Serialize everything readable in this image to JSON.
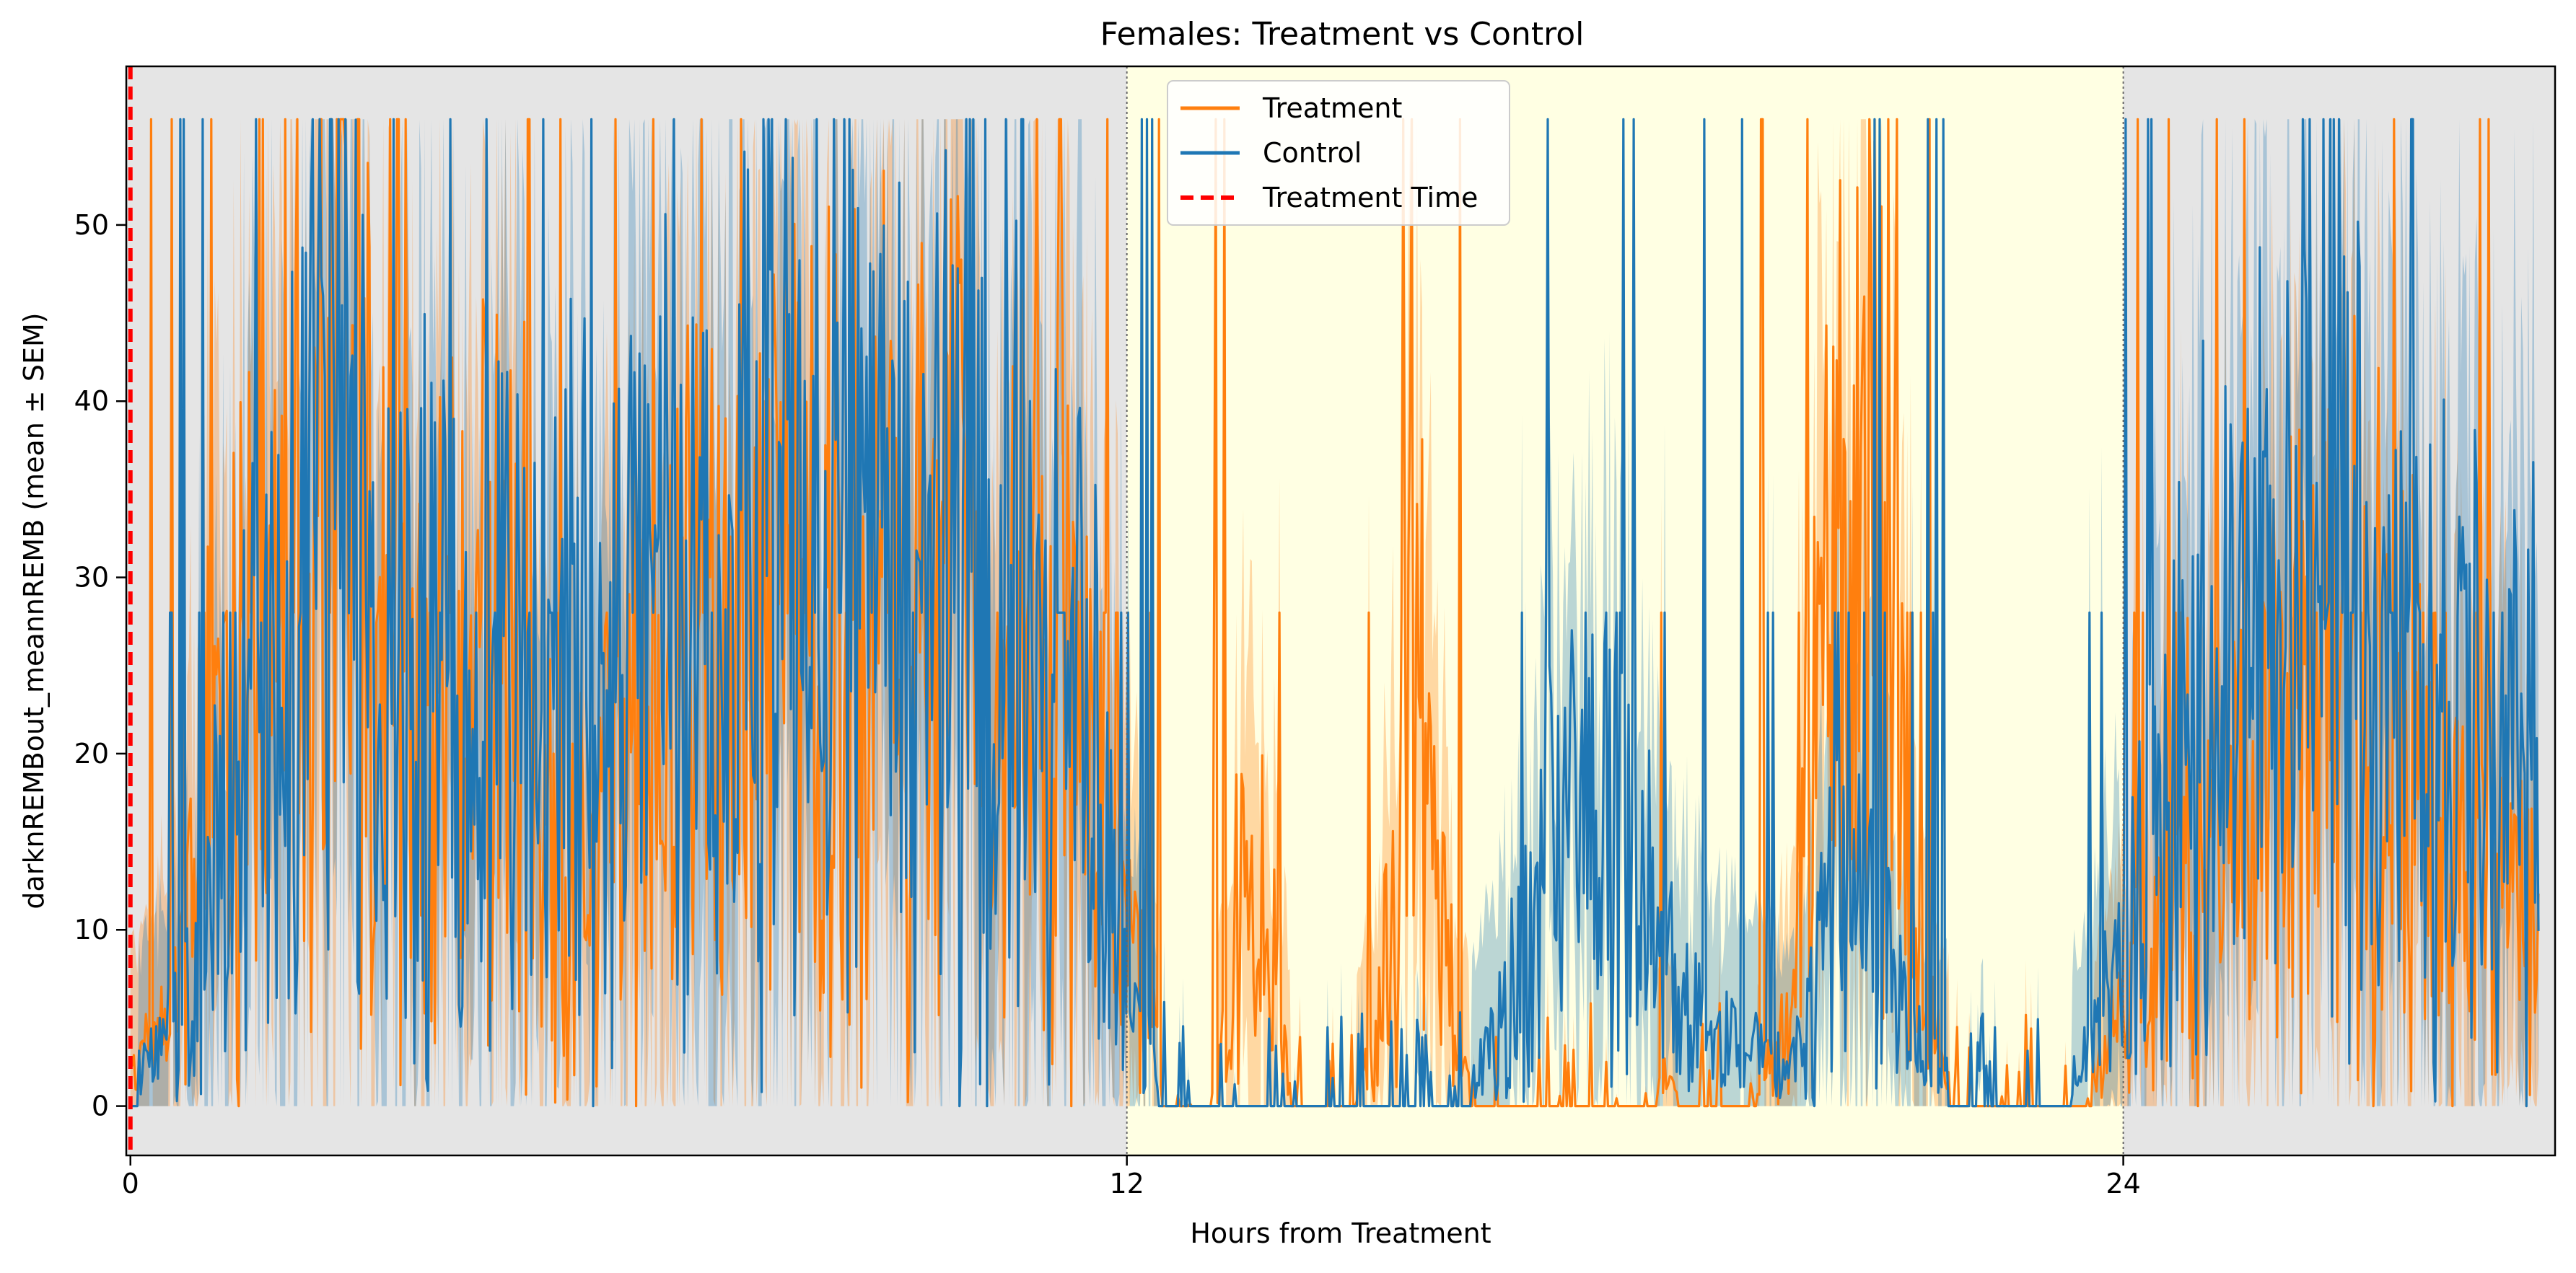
{
  "chart_data": {
    "type": "line",
    "title": "Females: Treatment vs Control",
    "xlabel": "Hours from Treatment",
    "ylabel": "darknREMBout_meannREMB (mean ± SEM)",
    "xlim": [
      -0.05,
      29.2
    ],
    "ylim": [
      -2.8,
      59
    ],
    "xticks": [
      0,
      12,
      24
    ],
    "yticks": [
      0,
      10,
      20,
      30,
      40,
      50
    ],
    "grid": false,
    "legend_position": "top-center",
    "legend": [
      "Treatment",
      "Control",
      "Treatment Time"
    ],
    "shading": [
      {
        "phase": "dark",
        "x_start": -0.05,
        "x_end": 12,
        "color": "#e5e5e5"
      },
      {
        "phase": "light",
        "x_start": 12,
        "x_end": 24,
        "color": "#ffffe3"
      },
      {
        "phase": "dark",
        "x_start": 24,
        "x_end": 29.2,
        "color": "#e5e5e5"
      }
    ],
    "phase_boundaries": [
      12,
      24
    ],
    "treatment_time": 0,
    "sem_ceiling": 56,
    "series": [
      {
        "name": "Treatment",
        "color": "#ff7f0e",
        "x": [
          0.0,
          0.5,
          1.0,
          1.5,
          2.0,
          2.5,
          3.0,
          3.5,
          4.0,
          4.5,
          5.0,
          5.5,
          6.0,
          6.5,
          7.0,
          7.5,
          8.0,
          8.5,
          9.0,
          9.5,
          10.0,
          10.5,
          11.0,
          11.5,
          12.0,
          12.5,
          13.0,
          13.5,
          14.0,
          14.5,
          15.0,
          15.5,
          16.0,
          16.5,
          17.0,
          17.5,
          18.0,
          18.5,
          19.0,
          19.5,
          20.0,
          20.5,
          21.0,
          21.5,
          22.0,
          22.5,
          23.0,
          23.5,
          24.0,
          24.5,
          25.0,
          25.5,
          26.0,
          26.5,
          27.0,
          27.5,
          28.0,
          28.5,
          29.0
        ],
        "y": [
          2,
          5,
          18,
          22,
          28,
          38,
          25,
          18,
          22,
          30,
          14,
          12,
          20,
          25,
          22,
          28,
          30,
          25,
          28,
          26,
          30,
          22,
          25,
          20,
          10,
          0,
          1,
          15,
          1,
          0,
          3,
          24,
          2,
          0,
          1,
          0,
          0,
          2,
          0,
          1,
          4,
          30,
          38,
          8,
          0,
          1,
          0,
          0,
          5,
          12,
          15,
          18,
          20,
          25,
          22,
          18,
          15,
          12,
          10
        ]
      },
      {
        "name": "Control",
        "color": "#1f77b4",
        "x": [
          0.0,
          0.5,
          1.0,
          1.5,
          2.0,
          2.5,
          3.0,
          3.5,
          4.0,
          4.5,
          5.0,
          5.5,
          6.0,
          6.5,
          7.0,
          7.5,
          8.0,
          8.5,
          9.0,
          9.5,
          10.0,
          10.5,
          11.0,
          11.5,
          12.0,
          12.5,
          13.0,
          13.5,
          14.0,
          14.5,
          15.0,
          15.5,
          16.0,
          16.5,
          17.0,
          17.5,
          18.0,
          18.5,
          19.0,
          19.5,
          20.0,
          20.5,
          21.0,
          21.5,
          22.0,
          22.5,
          23.0,
          23.5,
          24.0,
          24.5,
          25.0,
          25.5,
          26.0,
          26.5,
          27.0,
          27.5,
          28.0,
          28.5,
          29.0
        ],
        "y": [
          1,
          4,
          12,
          20,
          28,
          40,
          22,
          30,
          18,
          26,
          20,
          25,
          26,
          28,
          28,
          30,
          32,
          26,
          30,
          28,
          34,
          26,
          28,
          22,
          6,
          0,
          0,
          0,
          0,
          0,
          0,
          0,
          0,
          5,
          12,
          15,
          14,
          8,
          4,
          3,
          2,
          12,
          10,
          3,
          1,
          0,
          0,
          2,
          8,
          18,
          22,
          25,
          26,
          28,
          25,
          24,
          22,
          20,
          18
        ]
      },
      {
        "name": "Treatment Time",
        "color": "#ff0000",
        "style": "dashed",
        "x": [
          0,
          0
        ],
        "y": [
          -2.8,
          59
        ]
      }
    ]
  }
}
